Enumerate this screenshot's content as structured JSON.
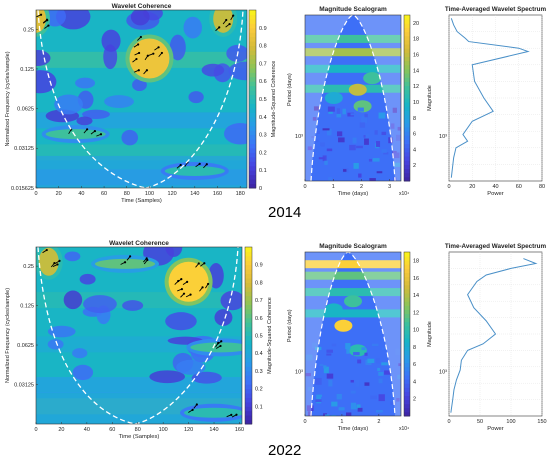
{
  "figure": {
    "year_labels": [
      "2014",
      "2022"
    ],
    "colors": {
      "cone": "#ffffff",
      "arrows": "#000000",
      "spectrum_line": "#4a90c8",
      "colormap": [
        "#3e26a8",
        "#4743e0",
        "#3d70f7",
        "#2a9ae9",
        "#17b4c7",
        "#3fc19a",
        "#8ec456",
        "#d4bb3a",
        "#fbcb3c",
        "#f9fb14"
      ]
    }
  },
  "chart_data": [
    {
      "type": "heatmap",
      "title": "Wavelet Coherence",
      "xlabel": "Time (Samples)",
      "ylabel": "Normalized Frequency  (cycles/sample)",
      "colorbar_label": "Magnitude-Squared Coherence",
      "x_ticks": [
        "0",
        "20",
        "40",
        "60",
        "80",
        "100",
        "120",
        "140",
        "160",
        "180"
      ],
      "xlim": [
        0,
        186
      ],
      "y_ticks": [
        "0.25",
        "0.125",
        "0.0625",
        "0.03125",
        "0.015625"
      ],
      "ylim": [
        0.0156,
        0.35
      ],
      "y_scale": "log2",
      "colorbar_ticks": [
        "0",
        "0.1",
        "0.2",
        "0.3",
        "0.4",
        "0.5",
        "0.6",
        "0.7",
        "0.8",
        "0.9"
      ],
      "clim": [
        0,
        1
      ],
      "high_coherence_regions": [
        {
          "x_center": 100,
          "y_center": 0.15,
          "value": 0.85
        },
        {
          "x_center": 0,
          "y_center": 0.3,
          "value": 0.8
        },
        {
          "x_center": 165,
          "y_center": 0.3,
          "value": 0.75
        },
        {
          "x_center": 35,
          "y_center": 0.04,
          "value": 0.55
        },
        {
          "x_center": 140,
          "y_center": 0.021,
          "value": 0.5
        }
      ]
    },
    {
      "type": "heatmap",
      "title": "Magnitude Scalogram",
      "xlabel": "Time (days)",
      "ylabel": "Period (days)",
      "x_multiplier": "x10⁴",
      "x_ticks": [
        "0",
        "1",
        "2",
        "3"
      ],
      "xlim": [
        0,
        3.4
      ],
      "y_ticks": [
        "10³"
      ],
      "colorbar_label": "Magnitude",
      "colorbar_ticks": [
        "2",
        "4",
        "6",
        "8",
        "10",
        "12",
        "14",
        "16",
        "18",
        "20"
      ],
      "clim": [
        0,
        21
      ]
    },
    {
      "type": "line",
      "title": "Time-Averaged Wavelet Spectrum",
      "xlabel": "Power",
      "x_ticks": [
        "0",
        "20",
        "40",
        "60",
        "80"
      ],
      "xlim": [
        0,
        80
      ],
      "y_ticks": [
        "10³"
      ],
      "series": [
        {
          "points": [
            [
              2,
              0.02
            ],
            [
              4,
              0.06
            ],
            [
              7,
              0.1
            ],
            [
              14,
              0.14
            ],
            [
              17,
              0.16
            ],
            [
              60,
              0.2
            ],
            [
              68,
              0.22
            ],
            [
              20,
              0.3
            ],
            [
              22,
              0.4
            ],
            [
              30,
              0.5
            ],
            [
              38,
              0.58
            ],
            [
              20,
              0.64
            ],
            [
              12,
              0.72
            ],
            [
              16,
              0.76
            ],
            [
              6,
              0.8
            ],
            [
              4,
              0.86
            ],
            [
              3,
              0.92
            ],
            [
              2,
              0.98
            ]
          ]
        }
      ]
    },
    {
      "type": "heatmap",
      "title": "Wavelet Coherence",
      "xlabel": "Time (Samples)",
      "ylabel": "Normalized Frequency  (cycles/sample)",
      "colorbar_label": "Magnitude-Squared Coherence",
      "x_ticks": [
        "0",
        "20",
        "40",
        "60",
        "80",
        "100",
        "120",
        "140",
        "160"
      ],
      "xlim": [
        0,
        162
      ],
      "y_ticks": [
        "0.25",
        "0.125",
        "0.0625",
        "0.03125"
      ],
      "ylim": [
        0.0156,
        0.35
      ],
      "y_scale": "log2",
      "colorbar_ticks": [
        "0.1",
        "0.2",
        "0.3",
        "0.4",
        "0.5",
        "0.6",
        "0.7",
        "0.8",
        "0.9"
      ],
      "clim": [
        0,
        1
      ],
      "high_coherence_regions": [
        {
          "x_center": 120,
          "y_center": 0.19,
          "value": 0.9
        },
        {
          "x_center": 10,
          "y_center": 0.27,
          "value": 0.75
        },
        {
          "x_center": 70,
          "y_center": 0.26,
          "value": 0.6
        },
        {
          "x_center": 145,
          "y_center": 0.06,
          "value": 0.55
        },
        {
          "x_center": 140,
          "y_center": 0.019,
          "value": 0.5
        }
      ]
    },
    {
      "type": "heatmap",
      "title": "Magnitude Scalogram",
      "xlabel": "Time (days)",
      "ylabel": "Period (days)",
      "x_multiplier": "x10⁴",
      "x_ticks": [
        "0",
        "1",
        "2"
      ],
      "xlim": [
        0,
        2.6
      ],
      "y_ticks": [
        "10³"
      ],
      "colorbar_label": "Magnitude",
      "colorbar_ticks": [
        "2",
        "4",
        "6",
        "8",
        "10",
        "12",
        "14",
        "16",
        "18"
      ],
      "clim": [
        0,
        19
      ]
    },
    {
      "type": "line",
      "title": "Time-Averaged Wavelet Spectrum",
      "xlabel": "Power",
      "x_ticks": [
        "0",
        "50",
        "100",
        "150"
      ],
      "xlim": [
        0,
        150
      ],
      "y_ticks": [
        "10³"
      ],
      "series": [
        {
          "points": [
            [
              120,
              0.04
            ],
            [
              140,
              0.07
            ],
            [
              100,
              0.1
            ],
            [
              60,
              0.14
            ],
            [
              45,
              0.18
            ],
            [
              30,
              0.26
            ],
            [
              40,
              0.34
            ],
            [
              60,
              0.42
            ],
            [
              75,
              0.5
            ],
            [
              55,
              0.56
            ],
            [
              30,
              0.6
            ],
            [
              20,
              0.66
            ],
            [
              18,
              0.72
            ],
            [
              12,
              0.78
            ],
            [
              8,
              0.84
            ],
            [
              6,
              0.9
            ],
            [
              3,
              0.98
            ]
          ]
        }
      ]
    }
  ]
}
